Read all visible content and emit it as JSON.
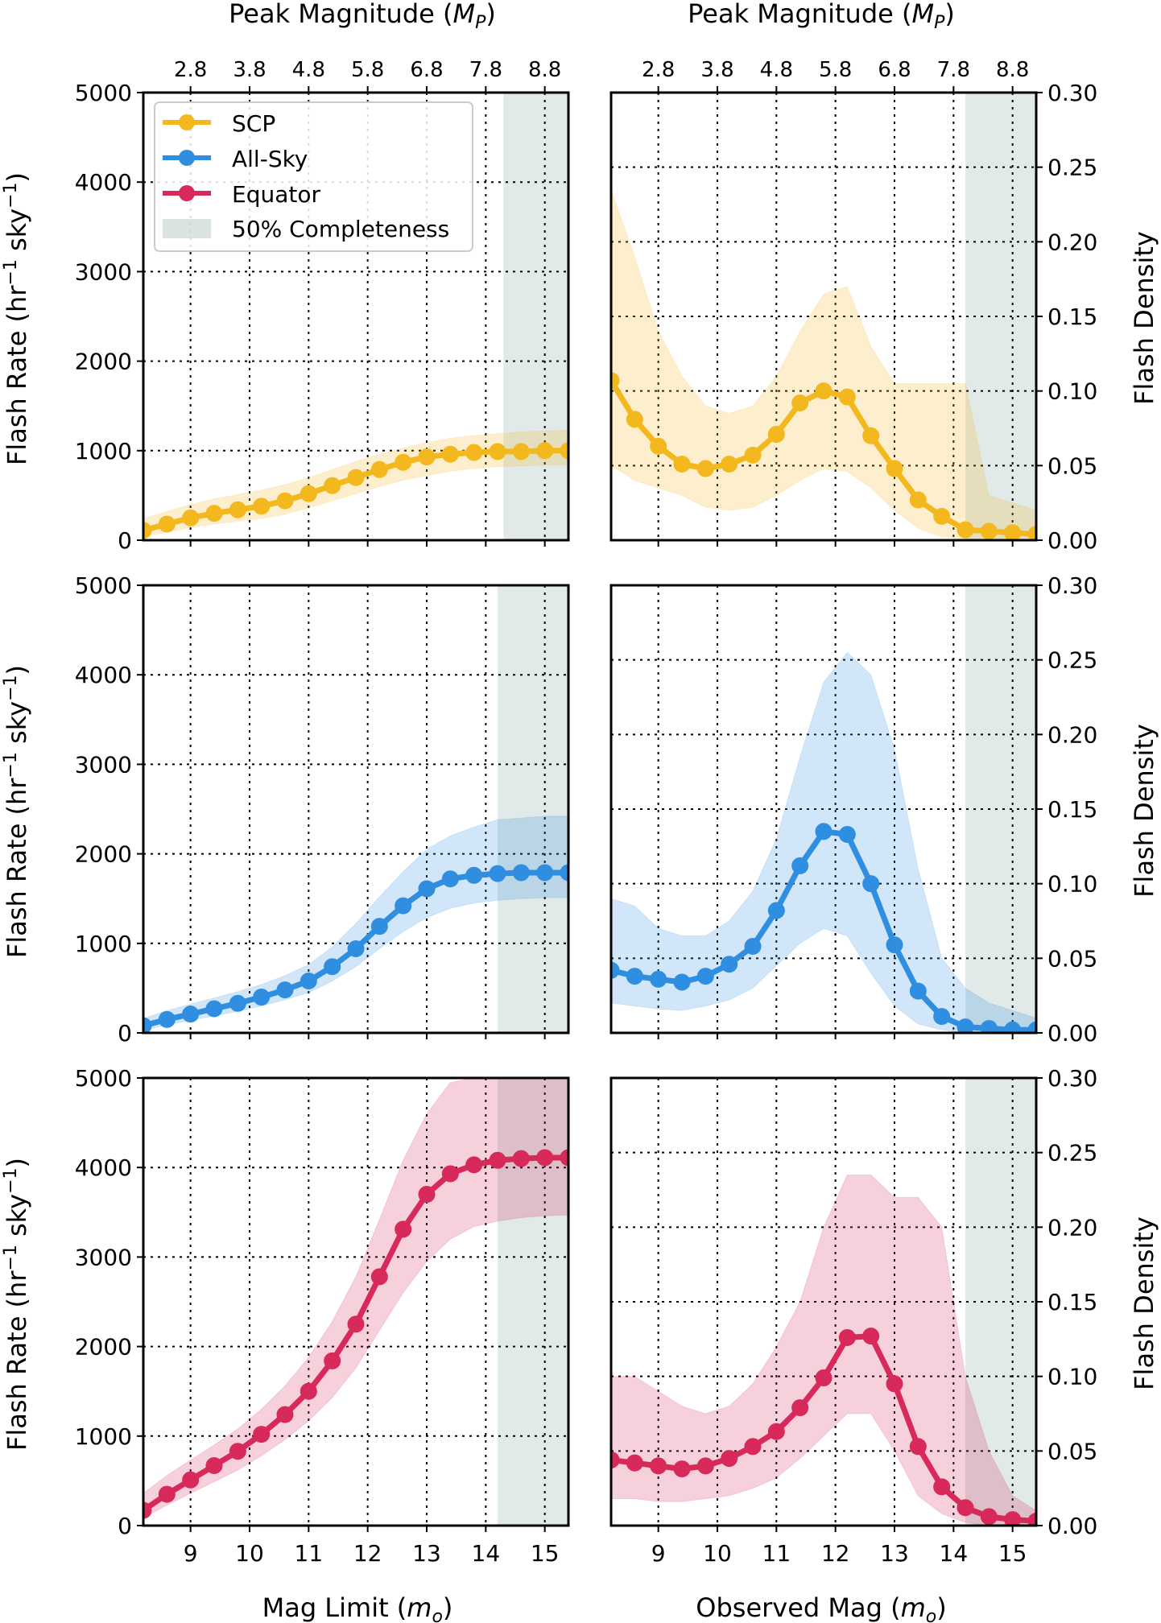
{
  "figure": {
    "top_axis_label": "Peak Magnitude (",
    "top_axis_label_symbol": "M",
    "top_axis_label_sub": "P",
    "top_axis_label_close": ")",
    "left_xlabel": "Mag Limit (",
    "right_xlabel": "Observed Mag (",
    "xlabel_symbol": "m",
    "xlabel_sub": "o",
    "xlabel_close": ")",
    "left_ylabel": "Flash Rate (hr",
    "left_ylabel_sup1": "−1",
    "left_ylabel_mid": " sky",
    "left_ylabel_sup2": "−1",
    "left_ylabel_close": ")",
    "right_ylabel": "Flash Density",
    "top_ticks": [
      "2.8",
      "3.8",
      "4.8",
      "5.8",
      "6.8",
      "7.8",
      "8.8"
    ],
    "top_tick_positions": [
      9,
      10,
      11,
      12,
      13,
      14,
      15
    ],
    "bottom_ticks": [
      "9",
      "10",
      "11",
      "12",
      "13",
      "14",
      "15"
    ],
    "bottom_tick_positions": [
      9,
      10,
      11,
      12,
      13,
      14,
      15
    ],
    "left_yticks": [
      "0",
      "1000",
      "2000",
      "3000",
      "4000",
      "5000"
    ],
    "left_ytick_values": [
      0,
      1000,
      2000,
      3000,
      4000,
      5000
    ],
    "right_yticks": [
      "0.00",
      "0.05",
      "0.10",
      "0.15",
      "0.20",
      "0.25",
      "0.30"
    ],
    "right_ytick_values": [
      0,
      0.05,
      0.1,
      0.15,
      0.2,
      0.25,
      0.3
    ],
    "colors": {
      "scp": "#f4b81f",
      "allsky": "#2f8ee0",
      "equator": "#d7295a",
      "completeness": "#c9d8d6"
    },
    "legend": {
      "items": [
        "SCP",
        "All-Sky",
        "Equator",
        "50% Completeness"
      ],
      "placement": "upper-left of top-left panel"
    }
  },
  "chart_data": [
    {
      "type": "line",
      "panel": "rate-scp",
      "xlabel": "",
      "ylabel": "Flash Rate (hr−1 sky−1)",
      "xlim": [
        8.2,
        15.4
      ],
      "ylim": [
        0,
        5000
      ],
      "shaded_region_x": [
        14.3,
        15.4
      ],
      "series": [
        {
          "name": "SCP",
          "x": [
            8.2,
            8.6,
            9.0,
            9.4,
            9.8,
            10.2,
            10.6,
            11.0,
            11.4,
            11.8,
            12.2,
            12.6,
            13.0,
            13.4,
            13.8,
            14.2,
            14.6,
            15.0,
            15.4
          ],
          "y": [
            110,
            180,
            250,
            300,
            340,
            380,
            440,
            520,
            610,
            700,
            790,
            870,
            930,
            960,
            980,
            990,
            990,
            1000,
            1000
          ],
          "upper": [
            240,
            320,
            400,
            460,
            510,
            560,
            620,
            700,
            790,
            880,
            960,
            1030,
            1090,
            1140,
            1170,
            1190,
            1210,
            1220,
            1230
          ],
          "lower": [
            40,
            90,
            140,
            180,
            210,
            240,
            290,
            360,
            440,
            520,
            600,
            670,
            720,
            770,
            800,
            820,
            830,
            840,
            840
          ]
        }
      ]
    },
    {
      "type": "line",
      "panel": "density-scp",
      "xlabel": "",
      "ylabel": "Flash Density",
      "xlim": [
        8.2,
        15.4
      ],
      "ylim": [
        0,
        0.3
      ],
      "shaded_region_x": [
        14.2,
        15.4
      ],
      "series": [
        {
          "name": "SCP",
          "x": [
            8.2,
            8.6,
            9.0,
            9.4,
            9.8,
            10.2,
            10.6,
            11.0,
            11.4,
            11.8,
            12.2,
            12.6,
            13.0,
            13.4,
            13.8,
            14.2,
            14.6,
            15.0,
            15.4
          ],
          "y": [
            0.107,
            0.081,
            0.063,
            0.051,
            0.048,
            0.051,
            0.057,
            0.071,
            0.092,
            0.1,
            0.096,
            0.07,
            0.048,
            0.027,
            0.016,
            0.007,
            0.006,
            0.005,
            0.004
          ],
          "upper": [
            0.235,
            0.19,
            0.14,
            0.11,
            0.09,
            0.085,
            0.09,
            0.11,
            0.14,
            0.165,
            0.17,
            0.13,
            0.105,
            0.105,
            0.105,
            0.105,
            0.03,
            0.025,
            0.02
          ],
          "lower": [
            0.05,
            0.04,
            0.035,
            0.03,
            0.022,
            0.02,
            0.022,
            0.03,
            0.04,
            0.048,
            0.046,
            0.035,
            0.02,
            0.008,
            0.002,
            0.001,
            0.0,
            0.0,
            0.0
          ]
        }
      ]
    },
    {
      "type": "line",
      "panel": "rate-allsky",
      "xlabel": "",
      "ylabel": "Flash Rate (hr−1 sky−1)",
      "xlim": [
        8.2,
        15.4
      ],
      "ylim": [
        0,
        5000
      ],
      "shaded_region_x": [
        14.2,
        15.4
      ],
      "series": [
        {
          "name": "All-Sky",
          "x": [
            8.2,
            8.6,
            9.0,
            9.4,
            9.8,
            10.2,
            10.6,
            11.0,
            11.4,
            11.8,
            12.2,
            12.6,
            13.0,
            13.4,
            13.8,
            14.2,
            14.6,
            15.0,
            15.4
          ],
          "y": [
            80,
            150,
            210,
            270,
            330,
            400,
            480,
            580,
            740,
            940,
            1190,
            1420,
            1610,
            1720,
            1760,
            1780,
            1790,
            1790,
            1790
          ],
          "upper": [
            160,
            250,
            320,
            390,
            460,
            540,
            640,
            760,
            960,
            1220,
            1520,
            1800,
            2050,
            2200,
            2300,
            2380,
            2400,
            2420,
            2420
          ],
          "lower": [
            30,
            90,
            140,
            190,
            240,
            300,
            370,
            450,
            580,
            740,
            940,
            1130,
            1290,
            1390,
            1450,
            1480,
            1500,
            1510,
            1510
          ]
        }
      ]
    },
    {
      "type": "line",
      "panel": "density-allsky",
      "xlabel": "",
      "ylabel": "Flash Density",
      "xlim": [
        8.2,
        15.4
      ],
      "ylim": [
        0,
        0.3
      ],
      "shaded_region_x": [
        14.2,
        15.4
      ],
      "series": [
        {
          "name": "All-Sky",
          "x": [
            8.2,
            8.6,
            9.0,
            9.4,
            9.8,
            10.2,
            10.6,
            11.0,
            11.4,
            11.8,
            12.2,
            12.6,
            13.0,
            13.4,
            13.8,
            14.2,
            14.6,
            15.0,
            15.4
          ],
          "y": [
            0.042,
            0.038,
            0.036,
            0.034,
            0.038,
            0.046,
            0.058,
            0.082,
            0.112,
            0.135,
            0.133,
            0.1,
            0.059,
            0.028,
            0.011,
            0.004,
            0.003,
            0.002,
            0.002
          ],
          "upper": [
            0.09,
            0.085,
            0.07,
            0.065,
            0.065,
            0.075,
            0.095,
            0.13,
            0.185,
            0.235,
            0.255,
            0.24,
            0.19,
            0.11,
            0.05,
            0.03,
            0.02,
            0.015,
            0.01
          ],
          "lower": [
            0.02,
            0.018,
            0.016,
            0.015,
            0.018,
            0.022,
            0.03,
            0.045,
            0.06,
            0.07,
            0.065,
            0.04,
            0.018,
            0.006,
            0.002,
            0.0,
            0.0,
            0.0,
            0.0
          ]
        }
      ]
    },
    {
      "type": "line",
      "panel": "rate-equator",
      "xlabel": "Mag Limit (mo)",
      "ylabel": "Flash Rate (hr−1 sky−1)",
      "xlim": [
        8.2,
        15.4
      ],
      "ylim": [
        0,
        5000
      ],
      "shaded_region_x": [
        14.2,
        15.4
      ],
      "series": [
        {
          "name": "Equator",
          "x": [
            8.2,
            8.6,
            9.0,
            9.4,
            9.8,
            10.2,
            10.6,
            11.0,
            11.4,
            11.8,
            12.2,
            12.6,
            13.0,
            13.4,
            13.8,
            14.2,
            14.6,
            15.0,
            15.4
          ],
          "y": [
            170,
            350,
            510,
            670,
            830,
            1020,
            1240,
            1500,
            1840,
            2250,
            2780,
            3310,
            3700,
            3930,
            4030,
            4080,
            4100,
            4110,
            4110
          ],
          "upper": [
            360,
            560,
            730,
            900,
            1080,
            1300,
            1560,
            1880,
            2280,
            2780,
            3420,
            4080,
            4600,
            4950,
            5000,
            5000,
            5000,
            5000,
            5000
          ],
          "lower": [
            80,
            230,
            360,
            490,
            620,
            780,
            960,
            1170,
            1430,
            1760,
            2180,
            2600,
            2950,
            3200,
            3340,
            3400,
            3440,
            3460,
            3470
          ]
        }
      ]
    },
    {
      "type": "line",
      "panel": "density-equator",
      "xlabel": "Observed Mag (mo)",
      "ylabel": "Flash Density",
      "xlim": [
        8.2,
        15.4
      ],
      "ylim": [
        0,
        0.3
      ],
      "shaded_region_x": [
        14.2,
        15.4
      ],
      "series": [
        {
          "name": "Equator",
          "x": [
            8.2,
            8.6,
            9.0,
            9.4,
            9.8,
            10.2,
            10.6,
            11.0,
            11.4,
            11.8,
            12.2,
            12.6,
            13.0,
            13.4,
            13.8,
            14.2,
            14.6,
            15.0,
            15.4
          ],
          "y": [
            0.044,
            0.042,
            0.04,
            0.038,
            0.04,
            0.045,
            0.053,
            0.063,
            0.079,
            0.099,
            0.126,
            0.127,
            0.095,
            0.053,
            0.026,
            0.012,
            0.006,
            0.004,
            0.003
          ],
          "upper": [
            0.1,
            0.1,
            0.09,
            0.08,
            0.075,
            0.08,
            0.095,
            0.12,
            0.15,
            0.2,
            0.235,
            0.235,
            0.22,
            0.22,
            0.2,
            0.1,
            0.05,
            0.02,
            0.01
          ],
          "lower": [
            0.018,
            0.018,
            0.016,
            0.016,
            0.018,
            0.02,
            0.025,
            0.032,
            0.045,
            0.06,
            0.075,
            0.075,
            0.05,
            0.02,
            0.008,
            0.002,
            0.0,
            0.0,
            0.0
          ]
        }
      ]
    }
  ]
}
